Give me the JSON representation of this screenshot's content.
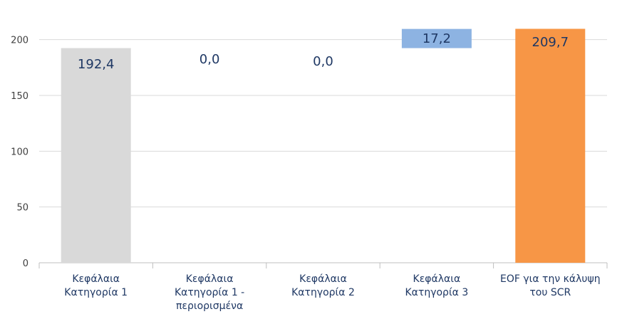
{
  "chart_data": {
    "type": "bar",
    "subtype": "waterfall",
    "categories": [
      [
        "Κεφάλαια",
        "Κατηγορία 1"
      ],
      [
        "Κεφάλαια",
        "Κατηγορία 1 -",
        "περιορισμένα"
      ],
      [
        "Κεφάλαια",
        "Κατηγορία 2"
      ],
      [
        "Κεφάλαια",
        "Κατηγορία 3"
      ],
      [
        "EOF για την κάλυψη",
        "του SCR"
      ]
    ],
    "values": [
      192.4,
      0.0,
      0.0,
      17.2,
      209.7
    ],
    "bases": [
      0,
      192.4,
      192.4,
      192.4,
      0
    ],
    "data_labels": [
      "192,4",
      "0,0",
      "0,0",
      "17,2",
      "209,7"
    ],
    "bar_colors": [
      "#d9d9d9",
      "#d9d9d9",
      "#d9d9d9",
      "#8db3e2",
      "#f79646"
    ],
    "yticks": [
      "0",
      "50",
      "100",
      "150",
      "200"
    ],
    "ylim": [
      0,
      210
    ],
    "grid": true,
    "legend": "none",
    "title": "",
    "xlabel": "",
    "ylabel": ""
  }
}
